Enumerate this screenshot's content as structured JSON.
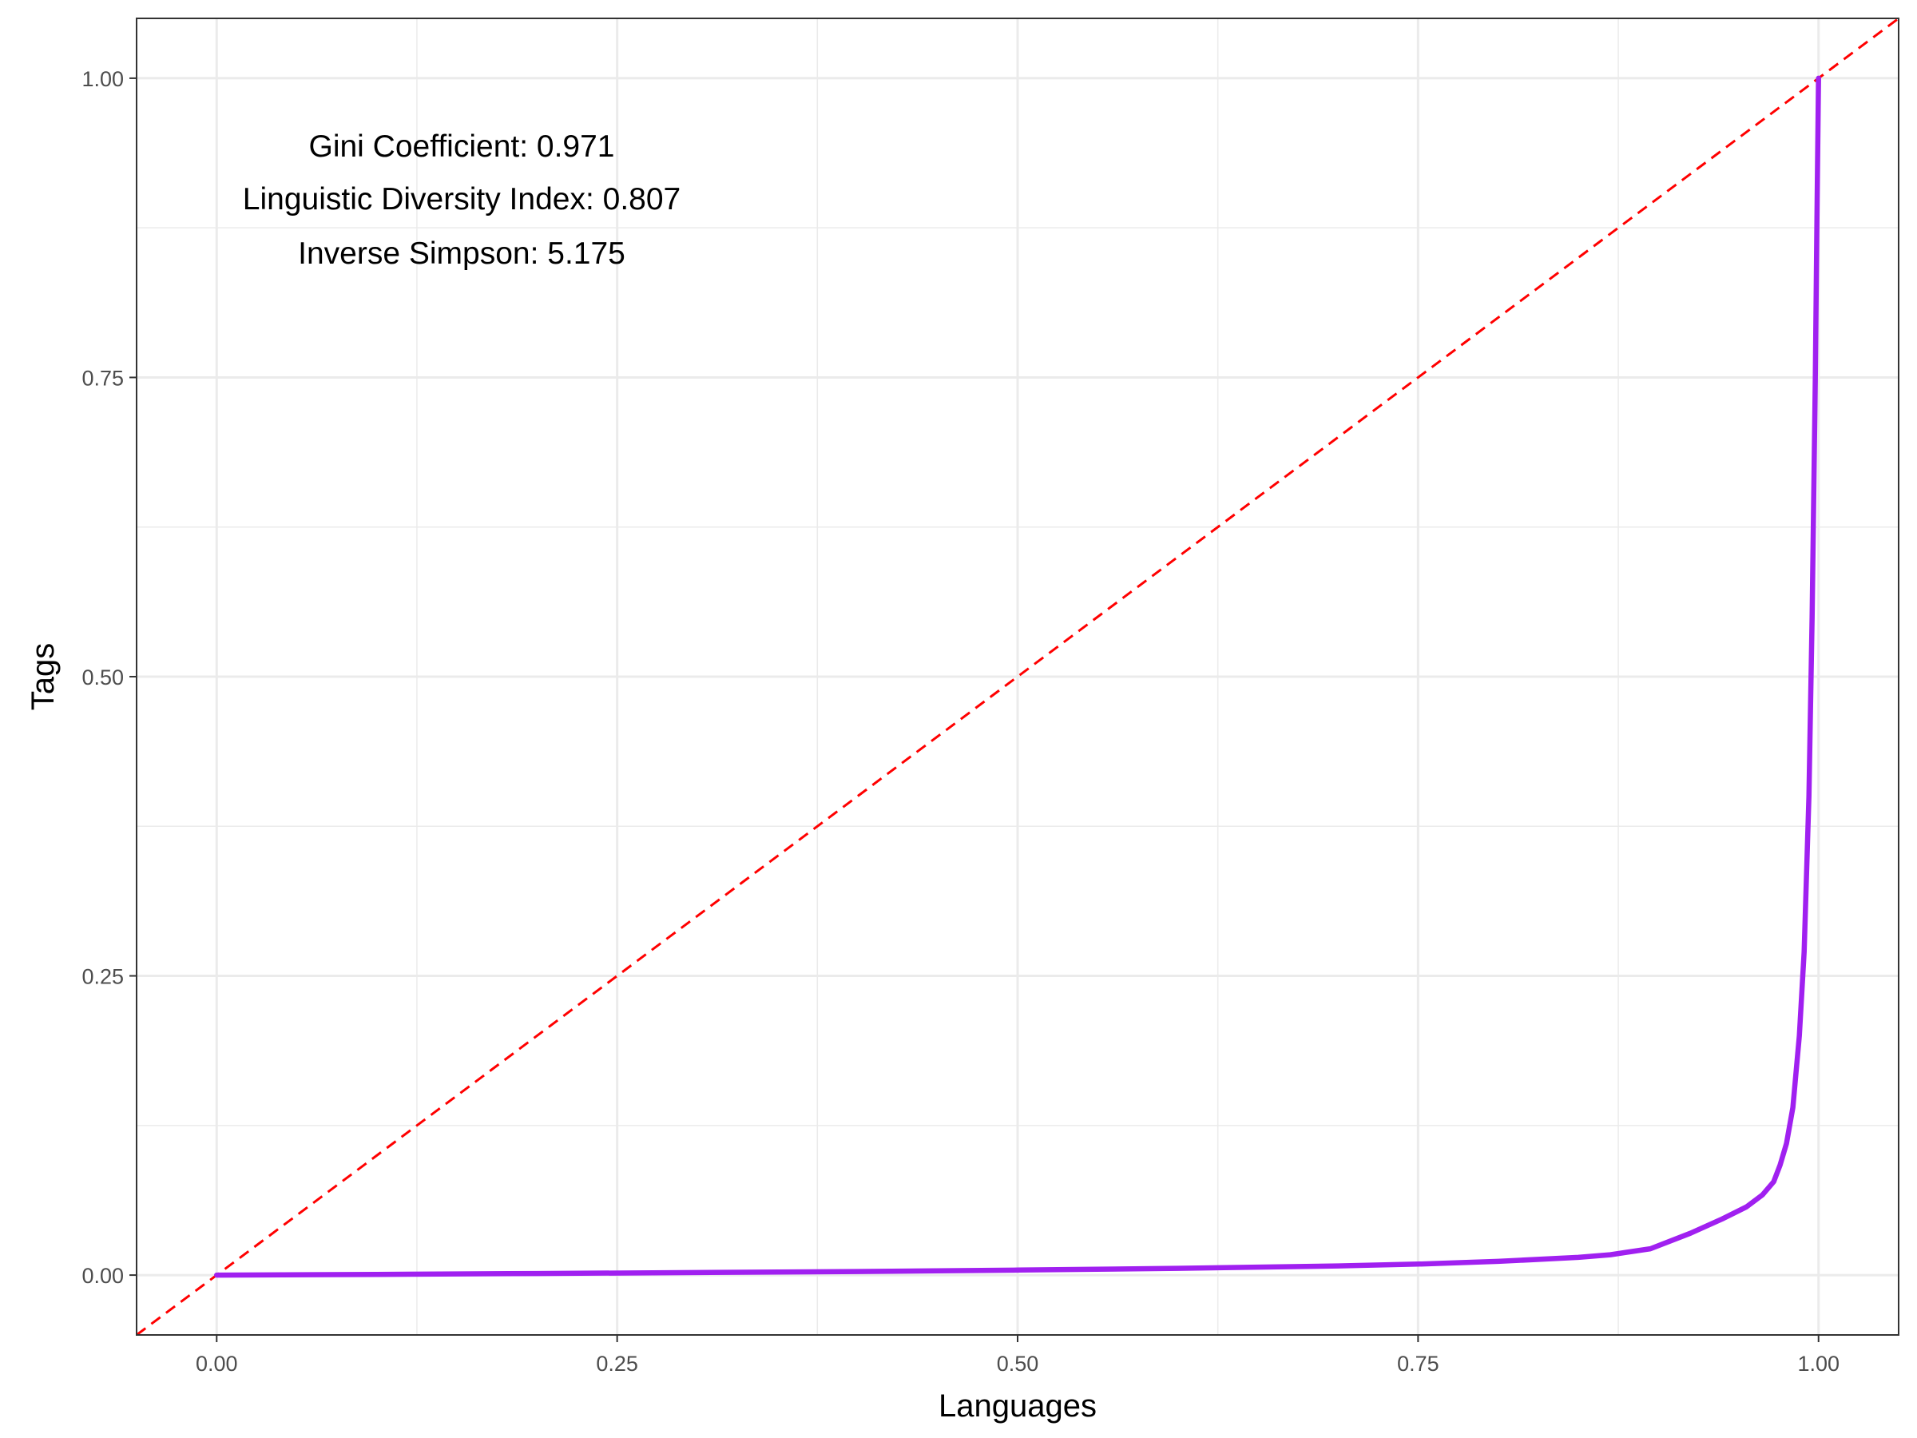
{
  "chart_data": {
    "type": "line",
    "xlabel": "Languages",
    "ylabel": "Tags",
    "xlim": [
      -0.05,
      1.05
    ],
    "ylim": [
      -0.05,
      1.05
    ],
    "x_ticks": [
      "0.00",
      "0.25",
      "0.50",
      "0.75",
      "1.00"
    ],
    "y_ticks": [
      "0.00",
      "0.25",
      "0.50",
      "0.75",
      "1.00"
    ],
    "grid": true,
    "annotations": [
      "Gini Coefficient: 0.971",
      "Linguistic Diversity Index: 0.807",
      "Inverse Simpson: 5.175"
    ],
    "series": [
      {
        "x": [
          0.0,
          0.1,
          0.2,
          0.3,
          0.4,
          0.5,
          0.6,
          0.7,
          0.75,
          0.8,
          0.85,
          0.87,
          0.895,
          0.92,
          0.94,
          0.955,
          0.965,
          0.972,
          0.976,
          0.98,
          0.984,
          0.988,
          0.991,
          0.994,
          0.996,
          0.998,
          0.999,
          1.0
        ],
        "y": [
          0.0,
          0.0006,
          0.0013,
          0.0021,
          0.003,
          0.0042,
          0.0057,
          0.0077,
          0.0092,
          0.0115,
          0.0148,
          0.017,
          0.022,
          0.035,
          0.047,
          0.057,
          0.067,
          0.078,
          0.092,
          0.11,
          0.14,
          0.2,
          0.27,
          0.4,
          0.55,
          0.75,
          0.88,
          1.0
        ],
        "color": "#a020f0"
      },
      {
        "x": [
          -0.05,
          1.05
        ],
        "y": [
          -0.05,
          1.05
        ],
        "color": "#ff0000",
        "style": "dashed"
      }
    ]
  }
}
